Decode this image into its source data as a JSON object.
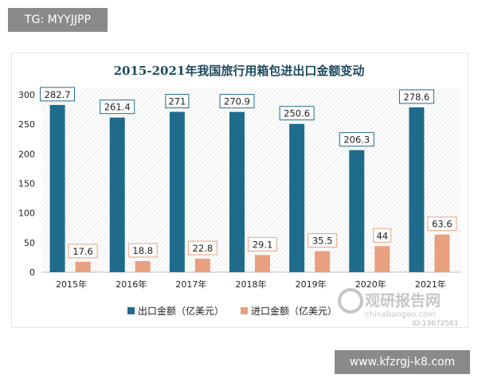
{
  "overlay": {
    "top_left_tag": "TG: MYYJJPP",
    "bottom_right_site": "www.kfzrgj-k8.com"
  },
  "watermark": {
    "logo_text": "观研报告网",
    "url": "chinabaogao.com",
    "id": "ID:13672581"
  },
  "chart_data": {
    "type": "bar",
    "title": "2015-2021年我国旅行用箱包进出口金额变动",
    "categories": [
      "2015年",
      "2016年",
      "2017年",
      "2018年",
      "2019年",
      "2020年",
      "2021年"
    ],
    "series": [
      {
        "name": "出口金额（亿美元）",
        "color": "#1f6b8c",
        "values": [
          282.7,
          261.4,
          271,
          270.9,
          250.6,
          206.3,
          278.6
        ],
        "labels": [
          "282.7",
          "261.4",
          "271",
          "270.9",
          "250.6",
          "206.3",
          "278.6"
        ]
      },
      {
        "name": "进口金额（亿美元）",
        "color": "#e9a07e",
        "values": [
          17.6,
          18.8,
          22.8,
          29.1,
          35.5,
          44,
          63.6
        ],
        "labels": [
          "17.6",
          "18.8",
          "22.8",
          "29.1",
          "35.5",
          "44",
          "63.6"
        ]
      }
    ],
    "ylim": [
      0,
      300
    ],
    "yticks": [
      0,
      50,
      100,
      150,
      200,
      250,
      300
    ],
    "grid": false,
    "legend": "bottom"
  }
}
